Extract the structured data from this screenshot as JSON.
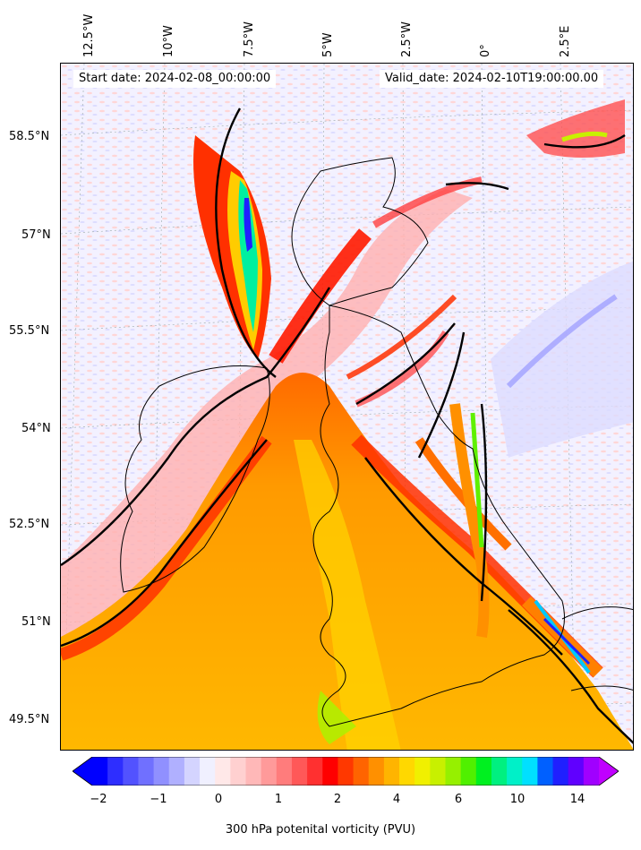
{
  "start_date": "Start date: 2024-02-08_00:00:00",
  "valid_date": "Valid_date: 2024-02-10T19:00:00.00",
  "lon_labels": [
    "12.5°W",
    "10°W",
    "7.5°W",
    "5°W",
    "2.5°W",
    "0°",
    "2.5°E"
  ],
  "lat_labels": [
    "58.5°N",
    "57°N",
    "55.5°N",
    "54°N",
    "52.5°N",
    "51°N",
    "49.5°N"
  ],
  "colorbar": {
    "label": "300 hPa potenital vorticity (PVU)",
    "ticks": [
      "−2",
      "−1",
      "0",
      "1",
      "2",
      "4",
      "6",
      "10",
      "14"
    ],
    "colors": [
      "#0000ff",
      "#2e2eff",
      "#5252ff",
      "#7070ff",
      "#9090ff",
      "#b0b0ff",
      "#d4d4ff",
      "#f0f0ff",
      "#ffe8e8",
      "#ffd0d0",
      "#ffb8b8",
      "#ff9a9a",
      "#ff7c7c",
      "#ff5858",
      "#ff3030",
      "#ff0000",
      "#ff3800",
      "#ff6400",
      "#ff9000",
      "#ffb400",
      "#ffd800",
      "#f0f000",
      "#c8f000",
      "#96f000",
      "#50f000",
      "#00f020",
      "#00f080",
      "#00f0c8",
      "#00e0ff",
      "#0060ff",
      "#2020ff",
      "#6000ff",
      "#a000ff"
    ],
    "under_color": "#0000ff",
    "over_color": "#c000ff"
  }
}
